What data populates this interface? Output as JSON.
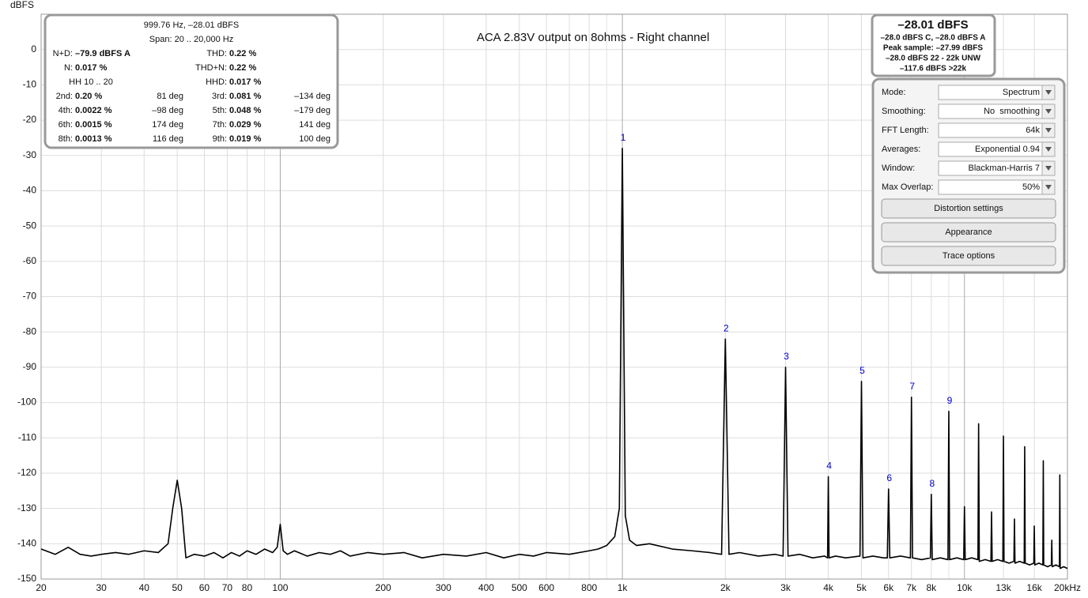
{
  "chart_data": {
    "type": "line",
    "title": "ACA 2.83V output on 8ohms - Right channel",
    "y_label": "dBFS",
    "xscale": "log",
    "xlim": [
      20,
      20000
    ],
    "ylim": [
      -150,
      10
    ],
    "grid": true,
    "color": "#000000",
    "xticks": [
      20,
      30,
      40,
      50,
      60,
      70,
      80,
      100,
      200,
      300,
      400,
      500,
      600,
      800,
      {
        "value": 1000,
        "label": "1k"
      },
      {
        "value": 2000,
        "label": "2k"
      },
      {
        "value": 3000,
        "label": "3k"
      },
      {
        "value": 4000,
        "label": "4k"
      },
      {
        "value": 5000,
        "label": "5k"
      },
      {
        "value": 6000,
        "label": "6k"
      },
      {
        "value": 7000,
        "label": "7k"
      },
      {
        "value": 8000,
        "label": "8k"
      },
      {
        "value": 10000,
        "label": "10k"
      },
      {
        "value": 13000,
        "label": "13k"
      },
      {
        "value": 16000,
        "label": "16k"
      },
      {
        "value": 20000,
        "label": "20kHz"
      }
    ],
    "x_minor_grid": [
      90,
      700,
      900,
      9000
    ],
    "yticks": [
      -150,
      -140,
      -130,
      -120,
      -110,
      -100,
      -90,
      -80,
      -70,
      -60,
      -50,
      -40,
      -30,
      -20,
      -10,
      0
    ],
    "x": [
      20,
      22,
      24,
      26,
      28,
      30,
      33,
      36,
      40,
      44,
      47,
      48.5,
      50,
      51.5,
      53,
      56,
      60,
      64,
      68,
      72,
      76,
      80,
      85,
      90,
      95,
      98,
      100,
      102,
      105,
      110,
      120,
      130,
      140,
      150,
      160,
      180,
      200,
      230,
      260,
      300,
      350,
      400,
      450,
      500,
      550,
      600,
      700,
      800,
      850,
      900,
      950,
      980,
      1000,
      1020,
      1050,
      1100,
      1200,
      1400,
      1600,
      1800,
      1950,
      2000,
      2050,
      2200,
      2500,
      2800,
      2950,
      3000,
      3050,
      3300,
      3600,
      3900,
      3980,
      4000,
      4020,
      4200,
      4500,
      4950,
      5000,
      5050,
      5400,
      5800,
      5950,
      6000,
      6050,
      6500,
      6950,
      7000,
      7050,
      7500,
      7950,
      8000,
      8050,
      8500,
      8950,
      9000,
      9050,
      9500,
      9950,
      10000,
      10050,
      10500,
      10950,
      11000,
      11050,
      11500,
      11950,
      12000,
      12050,
      12500,
      12950,
      13000,
      13050,
      13500,
      13950,
      14000,
      14050,
      14500,
      14950,
      15000,
      15050,
      15500,
      15950,
      16000,
      16050,
      16500,
      16950,
      17000,
      17050,
      17500,
      17950,
      18000,
      18050,
      18500,
      18950,
      19000,
      19050,
      19500,
      20000
    ],
    "values": [
      -141.5,
      -143,
      -141,
      -143,
      -143.5,
      -143,
      -142.5,
      -143,
      -142,
      -142.5,
      -140,
      -130,
      -122,
      -130,
      -144,
      -143,
      -143.5,
      -142.5,
      -144,
      -142.5,
      -143.5,
      -142,
      -143,
      -141.5,
      -142.5,
      -141,
      -134.5,
      -142,
      -143,
      -142,
      -143.5,
      -142.5,
      -143,
      -142,
      -143.5,
      -142.5,
      -143,
      -142.5,
      -144,
      -143,
      -143.5,
      -142.5,
      -144,
      -143,
      -143.5,
      -142.5,
      -143,
      -142,
      -141.5,
      -140.5,
      -138,
      -130,
      -28,
      -132,
      -139,
      -140.5,
      -140,
      -141.5,
      -142,
      -142.5,
      -143,
      -82,
      -143,
      -142.5,
      -143.5,
      -143,
      -143.5,
      -90,
      -143.5,
      -143,
      -144,
      -143.5,
      -144,
      -121,
      -144,
      -143.5,
      -144,
      -143.5,
      -94,
      -144,
      -143.5,
      -144,
      -144,
      -124.5,
      -144,
      -143.5,
      -144,
      -98.5,
      -144,
      -144.5,
      -144,
      -126,
      -144.5,
      -144,
      -144.5,
      -102.5,
      -144.5,
      -144,
      -144.5,
      -129.5,
      -144.5,
      -144,
      -144.5,
      -106,
      -145,
      -144.5,
      -145,
      -131,
      -145,
      -144.5,
      -145,
      -109.5,
      -145,
      -145.5,
      -145,
      -133,
      -145.5,
      -145,
      -145.5,
      -112.5,
      -145.5,
      -146,
      -145.5,
      -135,
      -146,
      -145.5,
      -146,
      -116.5,
      -146,
      -146.5,
      -146,
      -139,
      -146.5,
      -146,
      -146.5,
      -120.5,
      -147,
      -146.5,
      -147
    ],
    "harmonic_markers": {
      "color": "#0000cc",
      "labels": [
        "1",
        "2",
        "3",
        "4",
        "5",
        "6",
        "7",
        "8",
        "9"
      ],
      "x": [
        1000,
        2000,
        3000,
        4000,
        5000,
        6000,
        7000,
        8000,
        9000
      ],
      "values": [
        -28,
        -82,
        -90,
        -121,
        -94,
        -124.5,
        -98.5,
        -126,
        -102.5
      ]
    }
  },
  "measurement_panel": {
    "header": [
      "999.76 Hz, –28.01 dBFS",
      "Span: 20 .. 20,000 Hz"
    ],
    "rows": [
      {
        "left": {
          "label": "N+D:",
          "value": "–79.9 dBFS A"
        },
        "right": {
          "label": "THD:",
          "value": "0.22 %"
        }
      },
      {
        "left": {
          "label": "N:",
          "value": "0.017 %"
        },
        "right": {
          "label": "THD+N:",
          "value": "0.22 %"
        }
      },
      {
        "left": {
          "label": "HH 10 .. 20"
        },
        "right": {
          "label": "HHD:",
          "value": "0.017 %"
        }
      },
      {
        "left": {
          "label": "2nd:",
          "value": "0.20 %"
        },
        "left_phase": "81 deg",
        "right": {
          "label": "3rd:",
          "value": "0.081 %"
        },
        "right_phase": "–134 deg"
      },
      {
        "left": {
          "label": "4th:",
          "value": "0.0022 %"
        },
        "left_phase": "–98 deg",
        "right": {
          "label": "5th:",
          "value": "0.048 %"
        },
        "right_phase": "–179 deg"
      },
      {
        "left": {
          "label": "6th:",
          "value": "0.0015 %"
        },
        "left_phase": "174 deg",
        "right": {
          "label": "7th:",
          "value": "0.029 %"
        },
        "right_phase": "141 deg"
      },
      {
        "left": {
          "label": "8th:",
          "value": "0.0013 %"
        },
        "left_phase": "116 deg",
        "right": {
          "label": "9th:",
          "value": "0.019 %"
        },
        "right_phase": "100 deg"
      }
    ]
  },
  "level_panel": {
    "main": "–28.01 dBFS",
    "lines": [
      "–28.0 dBFS C, –28.0 dBFS A",
      "Peak sample: –27.99 dBFS",
      "–28.0 dBFS 22 - 22k UNW",
      "–117.6 dBFS >22k"
    ]
  },
  "controls": {
    "settings": [
      {
        "label": "Mode:",
        "value": "Spectrum"
      },
      {
        "label": "Smoothing:",
        "value": "No  smoothing"
      },
      {
        "label": "FFT Length:",
        "value": "64k"
      },
      {
        "label": "Averages:",
        "value": "Exponential 0.94"
      },
      {
        "label": "Window:",
        "value": "Blackman-Harris 7"
      },
      {
        "label": "Max Overlap:",
        "value": "50%"
      }
    ],
    "buttons": [
      "Distortion settings",
      "Appearance",
      "Trace options"
    ]
  }
}
